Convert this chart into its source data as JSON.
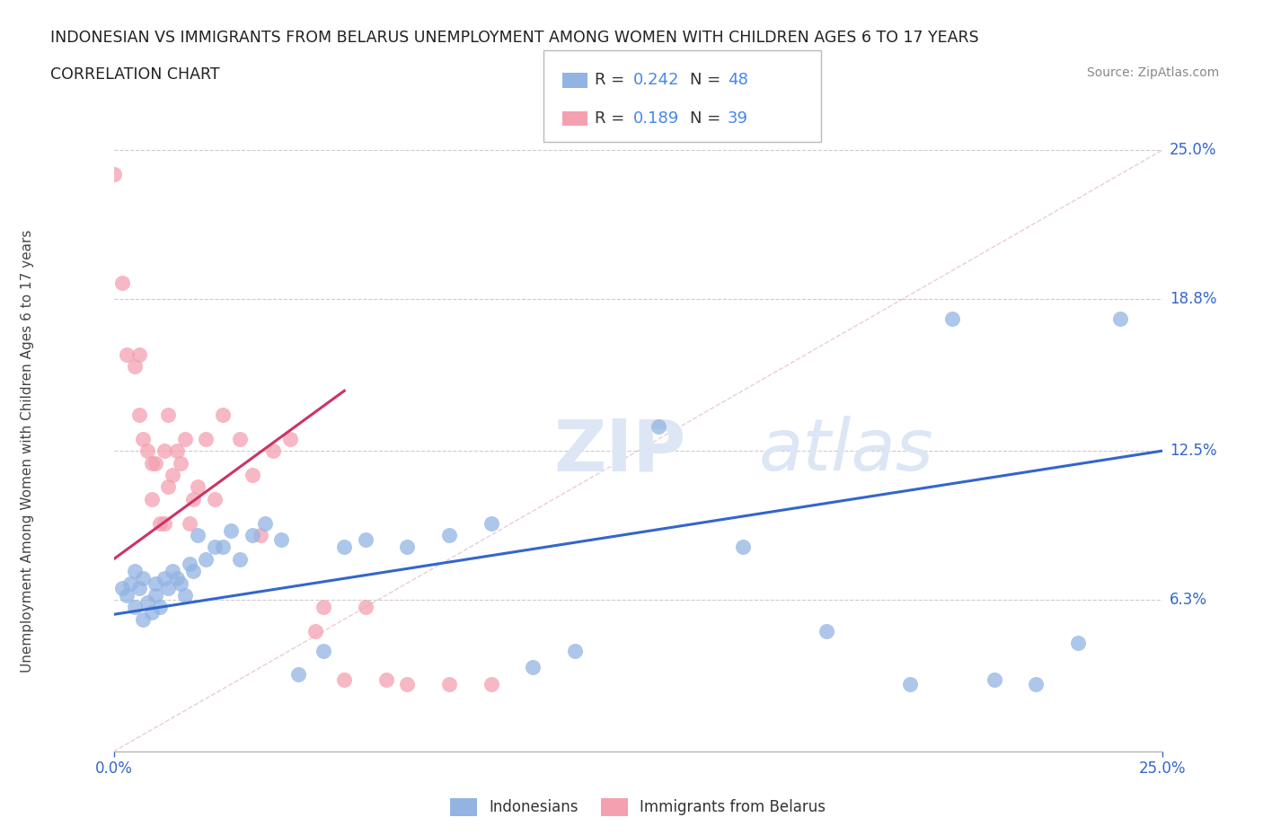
{
  "title_line1": "INDONESIAN VS IMMIGRANTS FROM BELARUS UNEMPLOYMENT AMONG WOMEN WITH CHILDREN AGES 6 TO 17 YEARS",
  "title_line2": "CORRELATION CHART",
  "source": "Source: ZipAtlas.com",
  "ylabel": "Unemployment Among Women with Children Ages 6 to 17 years",
  "xmin": 0.0,
  "xmax": 0.25,
  "ymin": 0.0,
  "ymax": 0.25,
  "ytick_positions": [
    0.063,
    0.125,
    0.188,
    0.25
  ],
  "ytick_labels": [
    "6.3%",
    "12.5%",
    "18.8%",
    "25.0%"
  ],
  "grid_color": "#cccccc",
  "background_color": "#ffffff",
  "indonesian_color": "#92b4e3",
  "belarus_color": "#f4a0b0",
  "indonesian_line_color": "#3366cc",
  "belarus_line_color": "#cc3366",
  "diag_line_color": "#ddaabb",
  "r_color": "#4488ee",
  "watermark_zip": "ZIP",
  "watermark_atlas": "atlas",
  "indonesian_x": [
    0.002,
    0.003,
    0.004,
    0.005,
    0.005,
    0.006,
    0.007,
    0.007,
    0.008,
    0.009,
    0.01,
    0.01,
    0.011,
    0.012,
    0.013,
    0.014,
    0.015,
    0.016,
    0.017,
    0.018,
    0.019,
    0.02,
    0.022,
    0.024,
    0.026,
    0.028,
    0.03,
    0.033,
    0.036,
    0.04,
    0.044,
    0.05,
    0.055,
    0.06,
    0.07,
    0.08,
    0.09,
    0.1,
    0.11,
    0.13,
    0.15,
    0.17,
    0.19,
    0.2,
    0.21,
    0.22,
    0.23,
    0.24
  ],
  "indonesian_y": [
    0.068,
    0.065,
    0.07,
    0.06,
    0.075,
    0.068,
    0.055,
    0.072,
    0.062,
    0.058,
    0.065,
    0.07,
    0.06,
    0.072,
    0.068,
    0.075,
    0.072,
    0.07,
    0.065,
    0.078,
    0.075,
    0.09,
    0.08,
    0.085,
    0.085,
    0.092,
    0.08,
    0.09,
    0.095,
    0.088,
    0.032,
    0.042,
    0.085,
    0.088,
    0.085,
    0.09,
    0.095,
    0.035,
    0.042,
    0.135,
    0.085,
    0.05,
    0.028,
    0.18,
    0.03,
    0.028,
    0.045,
    0.18
  ],
  "belarus_x": [
    0.0,
    0.002,
    0.003,
    0.005,
    0.006,
    0.006,
    0.007,
    0.008,
    0.009,
    0.009,
    0.01,
    0.011,
    0.012,
    0.012,
    0.013,
    0.013,
    0.014,
    0.015,
    0.016,
    0.017,
    0.018,
    0.019,
    0.02,
    0.022,
    0.024,
    0.026,
    0.03,
    0.033,
    0.035,
    0.038,
    0.042,
    0.048,
    0.05,
    0.055,
    0.06,
    0.065,
    0.07,
    0.08,
    0.09
  ],
  "belarus_y": [
    0.24,
    0.195,
    0.165,
    0.16,
    0.165,
    0.14,
    0.13,
    0.125,
    0.105,
    0.12,
    0.12,
    0.095,
    0.095,
    0.125,
    0.11,
    0.14,
    0.115,
    0.125,
    0.12,
    0.13,
    0.095,
    0.105,
    0.11,
    0.13,
    0.105,
    0.14,
    0.13,
    0.115,
    0.09,
    0.125,
    0.13,
    0.05,
    0.06,
    0.03,
    0.06,
    0.03,
    0.028,
    0.028,
    0.028
  ],
  "ind_line_x0": 0.0,
  "ind_line_x1": 0.25,
  "ind_line_y0": 0.057,
  "ind_line_y1": 0.125,
  "bel_line_x0": 0.0,
  "bel_line_x1": 0.055,
  "bel_line_y0": 0.08,
  "bel_line_y1": 0.15
}
